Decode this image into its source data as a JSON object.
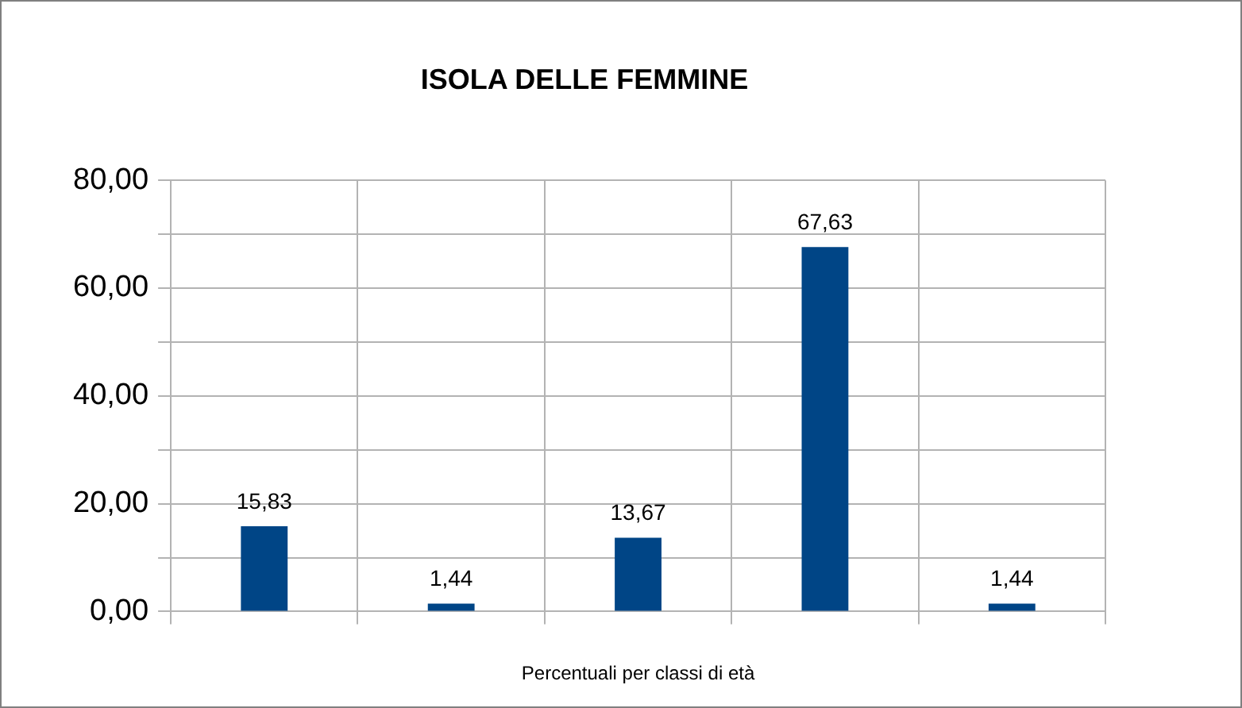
{
  "chart_data": {
    "type": "bar",
    "title": "ISOLA DELLE FEMMINE",
    "xlabel": "Percentuali per classi di età",
    "categories": [
      null,
      null,
      null,
      null,
      null
    ],
    "values": [
      15.83,
      1.44,
      13.67,
      67.63,
      1.44
    ],
    "color": "#004586",
    "value_labels": [
      "15,83",
      "1,44",
      "13,67",
      "67,63",
      "1,44"
    ],
    "ylim": [
      0,
      80
    ],
    "yticks": [
      {
        "value": 0,
        "label": "0,00"
      },
      {
        "value": 10,
        "label": null
      },
      {
        "value": 20,
        "label": "20,00"
      },
      {
        "value": 30,
        "label": null
      },
      {
        "value": 40,
        "label": "40,00"
      },
      {
        "value": 50,
        "label": null
      },
      {
        "value": 60,
        "label": "60,00"
      },
      {
        "value": 70,
        "label": null
      },
      {
        "value": 80,
        "label": "80,00"
      }
    ],
    "grid": true,
    "legend": false
  }
}
